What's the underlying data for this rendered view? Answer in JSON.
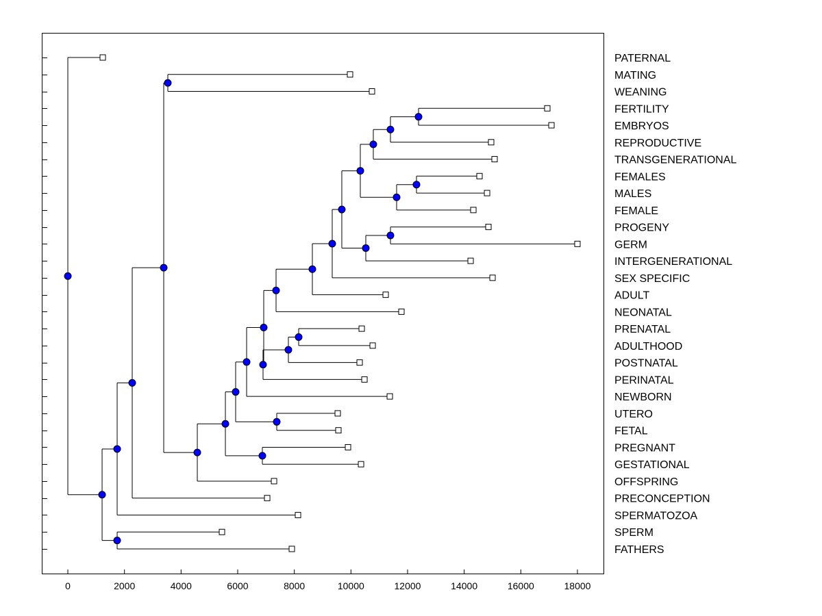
{
  "chart_data": {
    "type": "dendrogram",
    "orientation": "horizontal",
    "xlim": [
      -920,
      18920
    ],
    "xticks": [
      0,
      2000,
      4000,
      6000,
      8000,
      10000,
      12000,
      14000,
      16000,
      18000
    ],
    "xlabel": "",
    "ylabel": "",
    "title": "",
    "node_color": "#0000ff",
    "leaves": [
      {
        "label": "PATERNAL",
        "value": 1234
      },
      {
        "label": "MATING",
        "value": 9968
      },
      {
        "label": "WEANING",
        "value": 10742
      },
      {
        "label": "FERTILITY",
        "value": 16936
      },
      {
        "label": "EMBRYOS",
        "value": 17082
      },
      {
        "label": "REPRODUCTIVE",
        "value": 14952
      },
      {
        "label": "TRANSGENERATIONAL",
        "value": 15073
      },
      {
        "label": "FEMALES",
        "value": 14541
      },
      {
        "label": "MALES",
        "value": 14808
      },
      {
        "label": "FEMALE",
        "value": 14324
      },
      {
        "label": "PROGENY",
        "value": 14856
      },
      {
        "label": "GERM",
        "value": 18000
      },
      {
        "label": "INTERGENERATIONAL",
        "value": 14227
      },
      {
        "label": "SEX SPECIFIC",
        "value": 15001
      },
      {
        "label": "ADULT",
        "value": 11227
      },
      {
        "label": "NEONATAL",
        "value": 11783
      },
      {
        "label": "PRENATAL",
        "value": 10380
      },
      {
        "label": "ADULTHOOD",
        "value": 10767
      },
      {
        "label": "POSTNATAL",
        "value": 10307
      },
      {
        "label": "PERINATAL",
        "value": 10477
      },
      {
        "label": "NEWBORN",
        "value": 11372
      },
      {
        "label": "UTERO",
        "value": 9533
      },
      {
        "label": "FETAL",
        "value": 9557
      },
      {
        "label": "PREGNANT",
        "value": 9896
      },
      {
        "label": "GESTATIONAL",
        "value": 10356
      },
      {
        "label": "OFFSPRING",
        "value": 7283
      },
      {
        "label": "PRECONCEPTION",
        "value": 7041
      },
      {
        "label": "SPERMATOZOA",
        "value": 8130
      },
      {
        "label": "SPERM",
        "value": 5444
      },
      {
        "label": "FATHERS",
        "value": 7912
      }
    ],
    "nodes": [
      {
        "id": "root",
        "height": 0,
        "children": [
          "PATERNAL",
          "A"
        ]
      },
      {
        "id": "A",
        "height": 1210,
        "children": [
          "B",
          "C"
        ]
      },
      {
        "id": "C",
        "height": 1742,
        "children": [
          "SPERM",
          "FATHERS"
        ]
      },
      {
        "id": "B",
        "height": 1742,
        "children": [
          "D",
          "SPERMATOZOA"
        ]
      },
      {
        "id": "D",
        "height": 2274,
        "children": [
          "E",
          "PRECONCEPTION"
        ]
      },
      {
        "id": "E",
        "height": 3387,
        "children": [
          "F",
          "G"
        ]
      },
      {
        "id": "F",
        "height": 3532,
        "children": [
          "MATING",
          "WEANING"
        ]
      },
      {
        "id": "G",
        "height": 4573,
        "children": [
          "H",
          "OFFSPRING"
        ]
      },
      {
        "id": "H",
        "height": 5565,
        "children": [
          "I",
          "J"
        ]
      },
      {
        "id": "J",
        "height": 6871,
        "children": [
          "PREGNANT",
          "GESTATIONAL"
        ]
      },
      {
        "id": "I",
        "height": 5927,
        "children": [
          "K",
          "L"
        ]
      },
      {
        "id": "L",
        "height": 7379,
        "children": [
          "UTERO",
          "FETAL"
        ]
      },
      {
        "id": "K",
        "height": 6315,
        "children": [
          "N",
          "NEWBORN"
        ]
      },
      {
        "id": "N",
        "height": 6919,
        "children": [
          "P",
          "M"
        ]
      },
      {
        "id": "M",
        "height": 6895,
        "children": [
          "O",
          "PERINATAL"
        ]
      },
      {
        "id": "O",
        "height": 7790,
        "children": [
          "O2",
          "POSTNATAL"
        ]
      },
      {
        "id": "O2",
        "height": 8153,
        "children": [
          "PRENATAL",
          "ADULTHOOD"
        ]
      },
      {
        "id": "P",
        "height": 7355,
        "children": [
          "Q",
          "NEONATAL"
        ]
      },
      {
        "id": "Q",
        "height": 8637,
        "children": [
          "R",
          "ADULT"
        ]
      },
      {
        "id": "R",
        "height": 9339,
        "children": [
          "S",
          "SEX SPECIFIC"
        ]
      },
      {
        "id": "S",
        "height": 9677,
        "children": [
          "T",
          "U"
        ]
      },
      {
        "id": "U",
        "height": 10524,
        "children": [
          "V",
          "INTERGENERATIONAL"
        ]
      },
      {
        "id": "V",
        "height": 11395,
        "children": [
          "PROGENY",
          "GERM"
        ]
      },
      {
        "id": "T",
        "height": 10331,
        "children": [
          "W",
          "X"
        ]
      },
      {
        "id": "X",
        "height": 11613,
        "children": [
          "Y",
          "FEMALE"
        ]
      },
      {
        "id": "Y",
        "height": 12315,
        "children": [
          "FEMALES",
          "MALES"
        ]
      },
      {
        "id": "W",
        "height": 10790,
        "children": [
          "Z",
          "TRANSGENERATIONAL"
        ]
      },
      {
        "id": "Z",
        "height": 11395,
        "children": [
          "AA",
          "REPRODUCTIVE"
        ]
      },
      {
        "id": "AA",
        "height": 12387,
        "children": [
          "FERTILITY",
          "EMBRYOS"
        ]
      }
    ]
  }
}
